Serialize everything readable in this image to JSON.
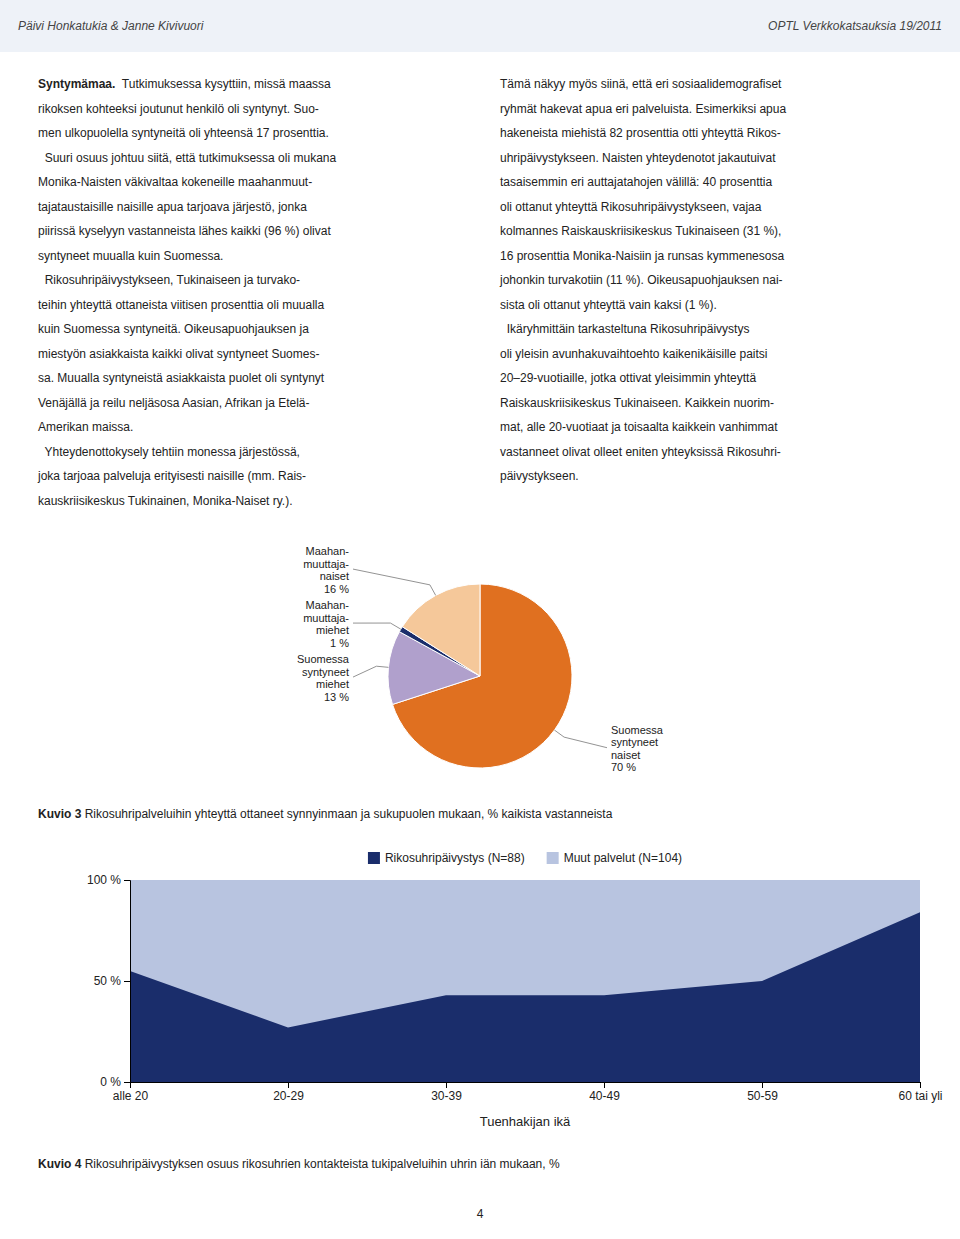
{
  "header_left": "Päivi Honkatukia & Janne Kivivuori",
  "header_right": "OPTL Verkkokatsauksia 19/2011",
  "body_left_lead": "Syntymämaa.",
  "body_left": [
    "  Tutkimuksessa kysyttiin, missä maassa",
    "rikoksen kohteeksi joutunut henkilö oli syntynyt. Suo-",
    "men ulkopuolella syntyneitä oli yhteensä 17 prosenttia.",
    "  Suuri osuus johtuu siitä, että tutkimuksessa oli mukana",
    "Monika-Naisten väkivaltaa kokeneille maahanmuut-",
    "tajataustaisille naisille apua tarjoava järjestö, jonka",
    "piirissä kyselyyn vastanneista lähes kaikki (96 %) olivat",
    "syntyneet muualla kuin Suomessa.",
    "  Rikosuhripäivystykseen, Tukinaiseen ja turvako-",
    "teihin yhteyttä ottaneista viitisen prosenttia oli muualla",
    "kuin Suomessa syntyneitä. Oikeusapuohjauksen ja",
    "miestyön asiakkaista kaikki olivat syntyneet Suomes-",
    "sa. Muualla syntyneistä asiakkaista puolet oli syntynyt",
    "Venäjällä ja reilu neljäsosa Aasian, Afrikan ja Etelä-",
    "Amerikan maissa.",
    "  Yhteydenottokysely tehtiin monessa järjestössä,",
    "joka tarjoaa palveluja erityisesti naisille (mm. Rais-",
    "kauskriisikeskus Tukinainen, Monika-Naiset ry.)."
  ],
  "body_right": [
    "Tämä näkyy myös siinä, että eri sosiaalidemografiset",
    "ryhmät hakevat apua eri palveluista. Esimerkiksi apua",
    "hakeneista miehistä 82 prosenttia otti yhteyttä Rikos-",
    "uhripäivystykseen. Naisten yhteydenotot jakautuivat",
    "tasaisemmin eri auttajatahojen välillä: 40 prosenttia",
    "oli ottanut yhteyttä Rikosuhripäivystykseen, vajaa",
    "kolmannes Raiskauskriisikeskus Tukinaiseen (31 %),",
    "16 prosenttia Monika-Naisiin ja runsas kymmenesosa",
    "johonkin turvakotiin (11 %). Oikeusapuohjauksen nai-",
    "sista oli ottanut yhteyttä vain kaksi (1 %).",
    "  Ikäryhmittäin tarkasteltuna Rikosuhripäivystys",
    "oli yleisin avunhakuvaihtoehto kaikenikäisille paitsi",
    "20–29-vuotiaille, jotka ottivat yleisimmin yhteyttä",
    "Raiskauskriisikeskus Tukinaiseen. Kaikkein nuorim-",
    "mat, alle 20-vuotiaat ja toisaalta kaikkein vanhimmat",
    "vastanneet olivat olleet eniten yhteyksissä Rikosuhri-",
    "päivystykseen."
  ],
  "page_number": "4",
  "chart_data": [
    {
      "type": "pie",
      "title": "Kuvio 3 Rikosuhripalveluihin yhteyttä ottaneet synnyinmaan ja sukupuolen mukaan, % kaikista vastanneista",
      "categories": [
        "Suomessa\nsyntyneet\nnaiset",
        "Suomessa\nsyntyneet\nmiehet",
        "Maahan-\nmuuttaja-\nmiehet",
        "Maahan-\nmuuttaja-\nnaiset"
      ],
      "values": [
        70,
        13,
        1,
        16
      ],
      "value_labels": [
        "70 %",
        "13 %",
        "1 %",
        "16 %"
      ],
      "colors": [
        "#e07020",
        "#b0a0cc",
        "#1a2d6b",
        "#f5c89a"
      ],
      "data_labels": true
    },
    {
      "type": "area",
      "title": "Kuvio 4 Rikosuhripäivystyksen osuus rikosuhrien kontakteista tukipalveluihin uhrin iän mukaan, %",
      "categories": [
        "alle 20",
        "20-29",
        "30-39",
        "40-49",
        "50-59",
        "60 tai yli"
      ],
      "series": [
        {
          "name": "Rikosuhripäivystys (N=88)",
          "color": "#1a2d6b",
          "values": [
            55,
            27,
            43,
            43,
            50,
            84
          ]
        },
        {
          "name": "Muut palvelut (N=104)",
          "color": "#b8c4e0",
          "values": [
            100,
            100,
            100,
            100,
            100,
            100
          ]
        }
      ],
      "xlabel": "Tuenhakijan ikä",
      "ylim": [
        0,
        100
      ],
      "yticks": [
        {
          "value": 0,
          "label": "0 %"
        },
        {
          "value": 50,
          "label": "50 %"
        },
        {
          "value": 100,
          "label": "100 %"
        }
      ],
      "stacked": false,
      "grid": false,
      "legend": "top"
    }
  ]
}
